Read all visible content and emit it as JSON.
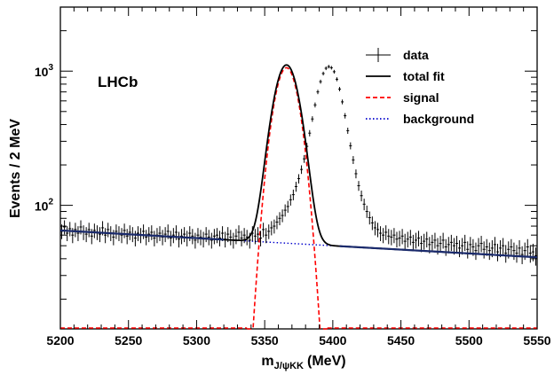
{
  "chart_data": {
    "type": "scatter",
    "annotation": "LHCb",
    "xlabel": "m",
    "xlabel_sub": "J/ψKK",
    "xlabel_unit": "(MeV)",
    "ylabel": "Events / 2 MeV",
    "xlim": [
      5200,
      5550
    ],
    "ylim": [
      12,
      3000
    ],
    "yscale": "log",
    "x_ticks": [
      5200,
      5250,
      5300,
      5350,
      5400,
      5450,
      5500,
      5550
    ],
    "x_tick_labels": [
      "5200",
      "5250",
      "5300",
      "5350",
      "5400",
      "5450",
      "5500",
      "5550"
    ],
    "y_ticks": [
      100,
      1000
    ],
    "y_tick_labels": [
      {
        "base": "10",
        "exp": "2"
      },
      {
        "base": "10",
        "exp": "3"
      }
    ],
    "grid": false,
    "legend_position": "top-right",
    "legend": [
      {
        "label": "data",
        "style": "points-with-errorbars",
        "color": "#000000"
      },
      {
        "label": "total fit",
        "style": "solid",
        "color": "#000000"
      },
      {
        "label": "signal",
        "style": "dashed",
        "color": "#ff0000"
      },
      {
        "label": "background",
        "style": "dotted",
        "color": "#0000cc"
      }
    ],
    "model": {
      "background": {
        "value_at_5200": 65,
        "value_at_5550": 41
      },
      "signal": {
        "mean": 5366,
        "sigma": 8.2,
        "peak": 1060,
        "cutoff_low": 5337,
        "cutoff_high": 5396
      }
    },
    "data": {
      "bin_width": 2,
      "x_start": 5201,
      "counts": [
        64,
        69,
        62,
        67,
        60,
        66,
        62,
        69,
        63,
        61,
        66,
        59,
        65,
        63,
        61,
        68,
        60,
        66,
        62,
        58,
        64,
        62,
        60,
        65,
        59,
        63,
        61,
        57,
        62,
        60,
        64,
        58,
        61,
        63,
        57,
        60,
        62,
        58,
        61,
        64,
        57,
        60,
        63,
        56,
        59,
        61,
        57,
        62,
        59,
        55,
        60,
        58,
        56,
        61,
        58,
        55,
        59,
        60,
        57,
        62,
        56,
        61,
        58,
        55,
        59,
        63,
        57,
        60,
        58,
        55,
        62,
        59,
        61,
        57,
        66,
        60,
        64,
        68,
        70,
        75,
        80,
        84,
        92,
        98,
        110,
        120,
        138,
        158,
        185,
        222,
        275,
        345,
        440,
        560,
        700,
        835,
        960,
        1050,
        1080,
        1060,
        990,
        870,
        735,
        590,
        465,
        360,
        278,
        218,
        172,
        140,
        118,
        102,
        90,
        81,
        74,
        68,
        66,
        62,
        60,
        63,
        59,
        58,
        60,
        56,
        57,
        59,
        54,
        56,
        58,
        53,
        55,
        57,
        52,
        54,
        56,
        51,
        53,
        55,
        50,
        52,
        55,
        49,
        51,
        53,
        50,
        52,
        48,
        50,
        53,
        47,
        51,
        49,
        46,
        50,
        52,
        47,
        49,
        46,
        48,
        51,
        45,
        48,
        50,
        44,
        47,
        49,
        46,
        44,
        48,
        43,
        46,
        49,
        44,
        45,
        42,
        47,
        44,
        46,
        41,
        45,
        43,
        40,
        44,
        42,
        46,
        41,
        43,
        40,
        42,
        44,
        39,
        43,
        41,
        38,
        42,
        40,
        44,
        39
      ]
    }
  }
}
